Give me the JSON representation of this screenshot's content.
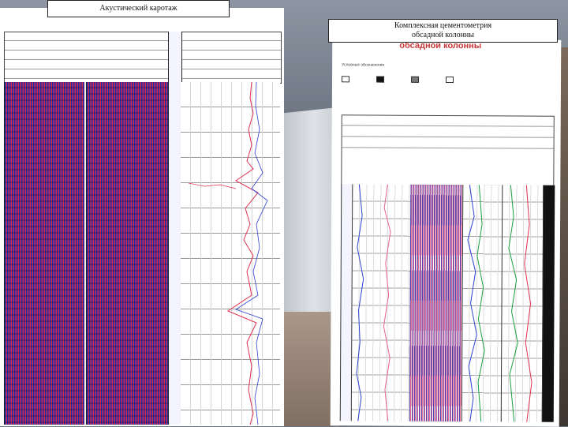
{
  "captions": {
    "left": "Акустический каротаж",
    "right_line1": "Комплексная цементометрия",
    "right_line2": "обсадной колонны"
  },
  "left_sheet": {
    "title": "АКУСТИЧЕСКИЙ КАРОТАЖ"
  },
  "right_sheet": {
    "title": "обсадной колонны",
    "subtitle": "Условные обозначения"
  },
  "colors": {
    "wave_blue": "#1d2fb4",
    "wave_red": "#d62a45",
    "curve_red": "#e03050",
    "curve_blue": "#2b3fd0",
    "curve_green": "#1aa040"
  }
}
